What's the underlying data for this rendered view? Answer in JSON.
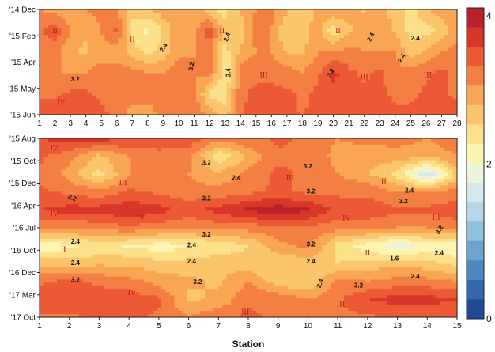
{
  "chart_data": [
    {
      "type": "heatmap",
      "xlabel": "",
      "x_ticks": [
        "1",
        "2",
        "3",
        "4",
        "5",
        "6",
        "7",
        "8",
        "9",
        "10",
        "11",
        "12",
        "13",
        "14",
        "15",
        "16",
        "17",
        "18",
        "19",
        "20",
        "21",
        "22",
        "23",
        "24",
        "25",
        "26",
        "27",
        "28"
      ],
      "y_ticks": [
        "'14 Dec",
        "'15 Feb",
        "'15 Apr",
        "'15 May",
        "'15 Jun"
      ],
      "xlim": [
        1,
        28
      ],
      "grid": [
        [
          3.0,
          2.9,
          2.8,
          3.0,
          3.1,
          3.0,
          2.6,
          2.7,
          2.9,
          3.0,
          2.9,
          2.6,
          2.4,
          2.8,
          3.0,
          3.1,
          2.8,
          2.6,
          2.8,
          3.0,
          2.9,
          2.7,
          2.9,
          2.6,
          2.4,
          2.7,
          2.9,
          3.0
        ],
        [
          3.2,
          3.4,
          3.0,
          2.8,
          3.0,
          3.3,
          2.4,
          2.2,
          2.5,
          3.0,
          2.9,
          3.4,
          2.6,
          2.6,
          3.1,
          3.0,
          2.5,
          2.6,
          2.9,
          2.3,
          2.7,
          2.9,
          3.0,
          2.7,
          2.4,
          2.4,
          2.6,
          2.9
        ],
        [
          3.0,
          3.1,
          2.8,
          2.7,
          2.9,
          2.9,
          2.6,
          2.4,
          2.6,
          2.9,
          3.0,
          3.2,
          2.4,
          2.8,
          3.0,
          3.0,
          2.7,
          2.7,
          3.0,
          3.0,
          3.1,
          3.0,
          3.0,
          3.0,
          2.6,
          2.8,
          3.0,
          3.1
        ],
        [
          3.1,
          3.0,
          3.0,
          3.0,
          3.1,
          3.1,
          3.1,
          3.0,
          3.0,
          3.2,
          3.0,
          3.1,
          2.3,
          3.1,
          3.2,
          3.2,
          3.1,
          3.0,
          3.2,
          3.6,
          3.3,
          3.2,
          3.3,
          3.1,
          3.1,
          3.2,
          3.3,
          3.2
        ],
        [
          3.2,
          3.2,
          3.3,
          3.3,
          3.2,
          3.2,
          3.2,
          3.1,
          3.0,
          3.1,
          3.1,
          2.4,
          2.3,
          3.2,
          3.3,
          3.3,
          3.3,
          3.2,
          3.3,
          3.4,
          3.4,
          3.3,
          3.3,
          3.2,
          3.2,
          3.3,
          3.3,
          3.2
        ],
        [
          3.4,
          3.5,
          3.4,
          3.4,
          3.3,
          3.2,
          2.8,
          2.9,
          3.1,
          3.2,
          3.2,
          2.9,
          2.7,
          3.2,
          3.4,
          3.4,
          3.4,
          3.2,
          3.4,
          3.5,
          3.5,
          3.4,
          3.4,
          3.3,
          3.3,
          3.4,
          3.4,
          3.4
        ]
      ],
      "zones": [
        {
          "label": "II",
          "x": 2,
          "y": 1
        },
        {
          "label": "II",
          "x": 7,
          "y": 1.4
        },
        {
          "label": "II",
          "x": 12.8,
          "y": 1
        },
        {
          "label": "II",
          "x": 20.3,
          "y": 1
        },
        {
          "label": "III",
          "x": 15.5,
          "y": 3.1
        },
        {
          "label": "III",
          "x": 22,
          "y": 3.2
        },
        {
          "label": "III",
          "x": 26.1,
          "y": 3.1
        },
        {
          "label": "IV",
          "x": 2.4,
          "y": 4.4
        }
      ],
      "contour_labels": [
        {
          "text": "2.4",
          "x": 9,
          "y": 1.8,
          "r": -55
        },
        {
          "text": "3.2",
          "x": 3.3,
          "y": 3.3,
          "r": 0
        },
        {
          "text": "3.2",
          "x": 10.8,
          "y": 2.7,
          "r": -80
        },
        {
          "text": "2.4",
          "x": 13.1,
          "y": 1.3,
          "r": -70
        },
        {
          "text": "2.4",
          "x": 13.2,
          "y": 3.0,
          "r": -90
        },
        {
          "text": "3.2",
          "x": 19.8,
          "y": 3.0,
          "r": -60
        },
        {
          "text": "2.4",
          "x": 22.4,
          "y": 1.3,
          "r": -65
        },
        {
          "text": "2.4",
          "x": 24.4,
          "y": 2.3,
          "r": -60
        },
        {
          "text": "2.4",
          "x": 25.3,
          "y": 1.35,
          "r": 0
        }
      ]
    },
    {
      "type": "heatmap",
      "xlabel": "Station",
      "x_ticks": [
        "1",
        "2",
        "3",
        "4",
        "5",
        "6",
        "7",
        "8",
        "9",
        "10",
        "11",
        "12",
        "13",
        "14",
        "15"
      ],
      "y_ticks": [
        "'15 Aug",
        "'15 Oct",
        "'15 Dec",
        "'16 Apr",
        "'16 Jul",
        "'16 Oct",
        "'16 Dec",
        "'17 Mar",
        "'17 Oct"
      ],
      "xlim": [
        1,
        15
      ],
      "grid": [
        [
          3.5,
          3.6,
          3.6,
          3.5,
          3.5,
          3.4,
          3.1,
          3.2,
          3.3,
          3.2,
          3.0,
          3.1,
          3.1,
          3.0,
          3.2
        ],
        [
          3.3,
          3.1,
          2.7,
          3.0,
          3.1,
          3.1,
          2.3,
          2.8,
          3.2,
          3.2,
          2.9,
          2.8,
          2.9,
          2.8,
          3.0
        ],
        [
          3.2,
          2.9,
          2.4,
          3.0,
          3.0,
          3.0,
          2.8,
          3.1,
          3.3,
          3.2,
          3.0,
          2.8,
          2.4,
          1.5,
          2.6
        ],
        [
          3.3,
          3.2,
          3.1,
          3.3,
          3.2,
          3.1,
          3.1,
          3.2,
          3.3,
          3.2,
          3.2,
          3.2,
          3.0,
          3.0,
          3.1
        ],
        [
          3.5,
          3.6,
          3.6,
          3.7,
          3.6,
          3.4,
          3.6,
          3.8,
          3.9,
          3.8,
          3.4,
          3.4,
          3.3,
          3.3,
          3.4
        ],
        [
          3.1,
          3.0,
          3.1,
          3.2,
          3.1,
          3.0,
          3.1,
          3.1,
          3.2,
          3.2,
          3.1,
          3.1,
          3.0,
          3.0,
          3.1
        ],
        [
          2.0,
          2.2,
          2.3,
          2.2,
          2.1,
          2.2,
          2.3,
          2.5,
          2.9,
          3.1,
          2.4,
          2.1,
          1.8,
          2.1,
          2.0
        ],
        [
          2.7,
          2.6,
          2.7,
          2.7,
          2.6,
          2.6,
          2.7,
          2.6,
          2.5,
          2.6,
          2.5,
          2.6,
          2.7,
          2.6,
          2.4
        ],
        [
          3.2,
          3.3,
          3.2,
          3.1,
          2.9,
          2.8,
          2.7,
          3.0,
          2.6,
          2.5,
          3.1,
          3.0,
          3.1,
          3.1,
          3.0
        ],
        [
          3.4,
          3.5,
          3.4,
          3.4,
          3.3,
          2.7,
          2.8,
          3.2,
          3.2,
          3.0,
          3.2,
          3.5,
          3.6,
          3.6,
          3.5
        ],
        [
          3.2,
          3.2,
          3.3,
          3.3,
          3.2,
          3.0,
          3.2,
          3.3,
          3.2,
          3.2,
          3.2,
          3.2,
          3.3,
          3.3,
          3.3
        ]
      ],
      "zones": [
        {
          "label": "IV",
          "x": 1.5,
          "y": 0.5
        },
        {
          "label": "III",
          "x": 3.8,
          "y": 2.45
        },
        {
          "label": "III",
          "x": 9.4,
          "y": 2.2
        },
        {
          "label": "III",
          "x": 12.5,
          "y": 2.4
        },
        {
          "label": "IV",
          "x": 1.5,
          "y": 4.2
        },
        {
          "label": "IV",
          "x": 4.4,
          "y": 4.45
        },
        {
          "label": "IV",
          "x": 11.3,
          "y": 4.45
        },
        {
          "label": "III",
          "x": 14.3,
          "y": 4.4
        },
        {
          "label": "II",
          "x": 1.8,
          "y": 6.2
        },
        {
          "label": "II",
          "x": 12,
          "y": 6.4
        },
        {
          "label": "IV",
          "x": 4.1,
          "y": 8.6
        },
        {
          "label": "III",
          "x": 7.9,
          "y": 9.7
        },
        {
          "label": "III",
          "x": 11.1,
          "y": 9.25
        }
      ],
      "contour_labels": [
        {
          "text": "3.2",
          "x": 6.6,
          "y": 1.35,
          "r": 0
        },
        {
          "text": "2.4",
          "x": 7.6,
          "y": 2.2,
          "r": 0
        },
        {
          "text": "3.2",
          "x": 10,
          "y": 1.55,
          "r": 0
        },
        {
          "text": "3.2",
          "x": 2.1,
          "y": 3.3,
          "r": 25
        },
        {
          "text": "3.2",
          "x": 6.6,
          "y": 3.35,
          "r": 0
        },
        {
          "text": "3.2",
          "x": 10.1,
          "y": 2.95,
          "r": 0
        },
        {
          "text": "2.4",
          "x": 13.4,
          "y": 2.9,
          "r": 0
        },
        {
          "text": "3.2",
          "x": 13.2,
          "y": 3.5,
          "r": 0
        },
        {
          "text": "3.2",
          "x": 6.6,
          "y": 5.35,
          "r": 0
        },
        {
          "text": "3.2",
          "x": 10.1,
          "y": 5.9,
          "r": 0
        },
        {
          "text": "3.2",
          "x": 14.4,
          "y": 5.1,
          "r": -60
        },
        {
          "text": "2.4",
          "x": 2.2,
          "y": 5.75,
          "r": 0
        },
        {
          "text": "2.4",
          "x": 6.1,
          "y": 5.95,
          "r": 0
        },
        {
          "text": "2.4",
          "x": 2.2,
          "y": 6.95,
          "r": 0
        },
        {
          "text": "2.4",
          "x": 6.1,
          "y": 6.85,
          "r": 0
        },
        {
          "text": "2.4",
          "x": 10.1,
          "y": 6.85,
          "r": 0
        },
        {
          "text": "1.6",
          "x": 12.9,
          "y": 6.7,
          "r": 0
        },
        {
          "text": "2.4",
          "x": 14.4,
          "y": 6.4,
          "r": 0
        },
        {
          "text": "3.2",
          "x": 2.2,
          "y": 7.9,
          "r": 0
        },
        {
          "text": "3.2",
          "x": 6.3,
          "y": 8.0,
          "r": 0
        },
        {
          "text": "2.4",
          "x": 10.4,
          "y": 8.1,
          "r": -70
        },
        {
          "text": "3.2",
          "x": 11.7,
          "y": 8.2,
          "r": 0
        },
        {
          "text": "2.4",
          "x": 13.6,
          "y": 7.7,
          "r": 0
        }
      ]
    }
  ],
  "colorbar": {
    "labels": [
      "4",
      "2",
      "0"
    ],
    "values": [
      4,
      2,
      0
    ],
    "colors": [
      "#b9222a",
      "#d9362a",
      "#eb5a35",
      "#f47f43",
      "#f8a653",
      "#fbc66b",
      "#fde08a",
      "#fdf3b3",
      "#edf4d9",
      "#d2e8ea",
      "#b4d6e8",
      "#91bfdc",
      "#6ea3cd",
      "#4e86bf",
      "#3667ad",
      "#214a96"
    ]
  }
}
